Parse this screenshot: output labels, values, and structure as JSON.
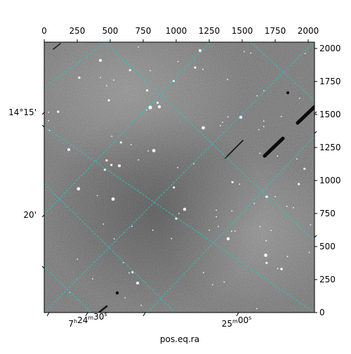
{
  "chart_data": {
    "type": "image",
    "title": "",
    "xlabel": "pos.eq.ra",
    "ylabel": "",
    "pixel_axis_x": {
      "range": [
        0,
        2048
      ],
      "ticks": [
        0,
        250,
        500,
        750,
        1000,
        1250,
        1500,
        1750,
        2000
      ],
      "labels": [
        "0",
        "250",
        "500",
        "750",
        "1000",
        "1250",
        "1500",
        "1750",
        "2000"
      ]
    },
    "pixel_axis_y": {
      "range": [
        0,
        2048
      ],
      "ticks": [
        0,
        250,
        500,
        750,
        1000,
        1250,
        1500,
        1750,
        2000
      ],
      "labels": [
        "0",
        "250",
        "500",
        "750",
        "1000",
        "1250",
        "1500",
        "1750",
        "2000"
      ]
    },
    "ra_ticks": [
      {
        "hours": "7",
        "minutes": "24",
        "seconds": "30"
      },
      {
        "hours": "",
        "minutes": "25",
        "seconds": "00"
      }
    ],
    "dec_ticks": [
      "14°15'",
      "20'"
    ],
    "grid": true,
    "grid_color": "#26c6c6",
    "image_colormap": "gray",
    "image_description": "Greyscale astronomical CCD frame with scattered white stars and a few dark satellite trails, overlaid with a cyan RA/Dec coordinate grid rotated about 45 degrees."
  }
}
